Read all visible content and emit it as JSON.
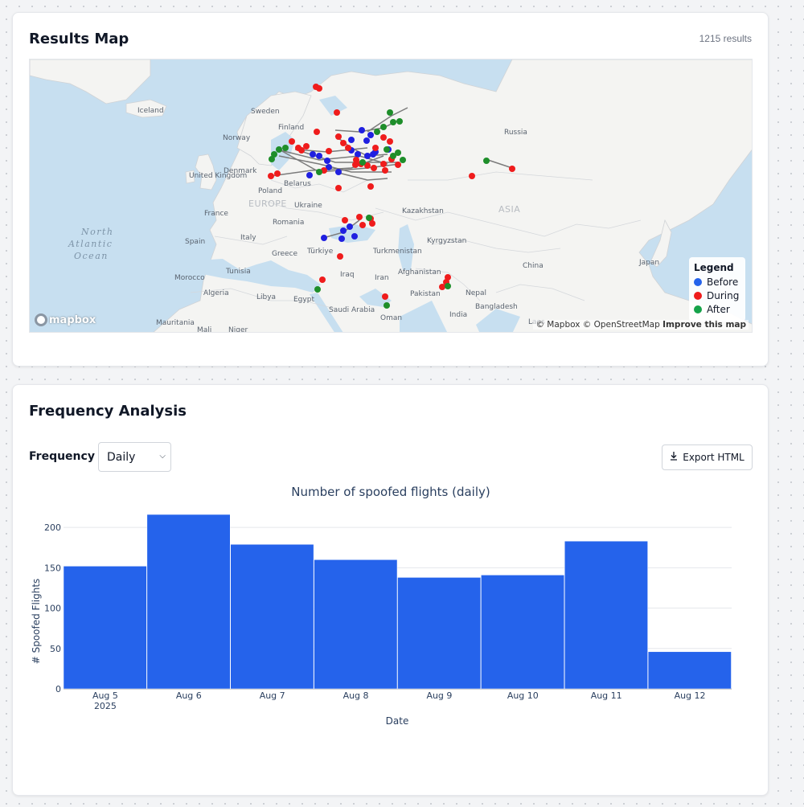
{
  "map_card": {
    "title": "Results Map",
    "result_count": "1215 results",
    "legend": {
      "title": "Legend",
      "items": [
        {
          "label": "Before",
          "color": "#2563eb"
        },
        {
          "label": "During",
          "color": "#ef1c1c"
        },
        {
          "label": "After",
          "color": "#16a34a"
        }
      ]
    },
    "places": [
      "Iceland",
      "Sweden",
      "Finland",
      "Norway",
      "Russia",
      "Denmark",
      "United Kingdom",
      "Poland",
      "Belarus",
      "EUROPE",
      "Ukraine",
      "France",
      "Kazakhstan",
      "ASIA",
      "Romania",
      "Spain",
      "Italy",
      "Kyrgyzstan",
      "Greece",
      "Türkiye",
      "Turkmenistan",
      "Tunisia",
      "China",
      "Morocco",
      "Afghanistan",
      "Iraq",
      "Iran",
      "Japan",
      "Algeria",
      "Libya",
      "Egypt",
      "Pakistan",
      "Nepal",
      "Saudi Arabia",
      "Bangladesh",
      "India",
      "Oman",
      "Mauritania",
      "Mali",
      "Niger",
      "Laos"
    ],
    "ocean_label": [
      "North",
      "Atlantic",
      "Ocean"
    ],
    "mapbox_logo": "mapbox",
    "attribution": "© Mapbox © OpenStreetMap",
    "improve_link": "Improve this map"
  },
  "freq_card": {
    "title": "Frequency Analysis",
    "frequency_label": "Frequency",
    "select_value": "Daily",
    "export_label": "Export HTML"
  },
  "chart_data": {
    "type": "bar",
    "title": "Number of spoofed flights (daily)",
    "xlabel": "Date",
    "ylabel": "# Spoofed Flights",
    "categories": [
      "Aug 5",
      "Aug 6",
      "Aug 7",
      "Aug 8",
      "Aug 9",
      "Aug 10",
      "Aug 11",
      "Aug 12"
    ],
    "year_label": "2025",
    "values": [
      152,
      216,
      179,
      160,
      138,
      141,
      183,
      46
    ],
    "yticks": [
      0,
      50,
      100,
      150,
      200
    ],
    "ylim": [
      0,
      227
    ],
    "bar_color": "#2563eb",
    "grid": true
  }
}
